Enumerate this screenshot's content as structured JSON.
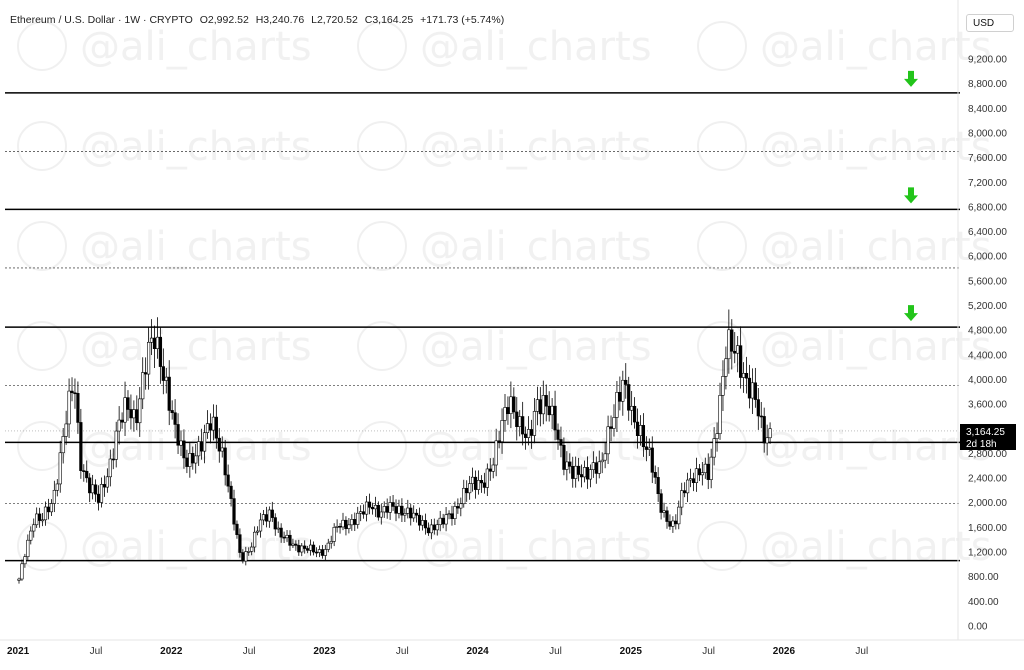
{
  "header": {
    "symbol": "Ethereum / U.S. Dollar · 1W · CRYPTO",
    "open": "O2,992.52",
    "high": "H3,240.76",
    "low": "L2,720.52",
    "close": "C3,164.25",
    "change": "+171.73 (+5.74%)"
  },
  "currency_label": "USD",
  "watermark_text": "@ali_charts",
  "price_box": {
    "price": "3,164.25",
    "countdown": "2d 18h"
  },
  "colors": {
    "bull": "#ffffff",
    "bear": "#000000",
    "arrow": "#22c41a",
    "line": "#000000",
    "dashed": "#555555"
  },
  "chart_data": {
    "type": "candlestick",
    "title": "Ethereum / U.S. Dollar · 1W · CRYPTO",
    "xlabel": "",
    "ylabel": "",
    "ylim": [
      0,
      9400
    ],
    "xlim": [
      2021.0,
      2026.85
    ],
    "y_ticks": [
      0,
      400,
      800,
      1200,
      1600,
      2000,
      2400,
      2800,
      3200,
      3600,
      4000,
      4400,
      4800,
      5200,
      5600,
      6000,
      6400,
      6800,
      7200,
      7600,
      8000,
      8400,
      8800,
      9200
    ],
    "y_tick_labels": [
      "0.00",
      "400.00",
      "800.00",
      "1,200.00",
      "1,600.00",
      "2,000.00",
      "2,400.00",
      "2,800.00",
      "3,200.00",
      "3,600.00",
      "4,000.00",
      "4,400.00",
      "4,800.00",
      "5,200.00",
      "5,600.00",
      "6,000.00",
      "6,400.00",
      "6,800.00",
      "7,200.00",
      "7,600.00",
      "8,000.00",
      "8,400.00",
      "8,800.00",
      "9,200.00"
    ],
    "x_ticks": [
      {
        "label": "2021",
        "t": 2021.0,
        "year": true
      },
      {
        "label": "Jul",
        "t": 2021.5,
        "year": false
      },
      {
        "label": "2022",
        "t": 2022.0,
        "year": true
      },
      {
        "label": "Jul",
        "t": 2022.5,
        "year": false
      },
      {
        "label": "2023",
        "t": 2023.0,
        "year": true
      },
      {
        "label": "Jul",
        "t": 2023.5,
        "year": false
      },
      {
        "label": "2024",
        "t": 2024.0,
        "year": true
      },
      {
        "label": "Jul",
        "t": 2024.5,
        "year": false
      },
      {
        "label": "2025",
        "t": 2025.0,
        "year": true
      },
      {
        "label": "Jul",
        "t": 2025.5,
        "year": false
      },
      {
        "label": "2026",
        "t": 2026.0,
        "year": true
      },
      {
        "label": "Jul",
        "t": 2026.5,
        "year": false
      }
    ],
    "close_path": [
      [
        2021.0,
        740
      ],
      [
        2021.05,
        1300
      ],
      [
        2021.1,
        1800
      ],
      [
        2021.15,
        1700
      ],
      [
        2021.22,
        2000
      ],
      [
        2021.3,
        3300
      ],
      [
        2021.36,
        3900
      ],
      [
        2021.4,
        2700
      ],
      [
        2021.46,
        2300
      ],
      [
        2021.52,
        2000
      ],
      [
        2021.58,
        2500
      ],
      [
        2021.64,
        3200
      ],
      [
        2021.7,
        3500
      ],
      [
        2021.76,
        3400
      ],
      [
        2021.82,
        4200
      ],
      [
        2021.88,
        4600
      ],
      [
        2021.92,
        4400
      ],
      [
        2021.96,
        4000
      ],
      [
        2022.02,
        3100
      ],
      [
        2022.08,
        2700
      ],
      [
        2022.14,
        2800
      ],
      [
        2022.2,
        2900
      ],
      [
        2022.26,
        3400
      ],
      [
        2022.32,
        2900
      ],
      [
        2022.38,
        2000
      ],
      [
        2022.45,
        1100
      ],
      [
        2022.52,
        1300
      ],
      [
        2022.58,
        1700
      ],
      [
        2022.64,
        1900
      ],
      [
        2022.7,
        1450
      ],
      [
        2022.78,
        1350
      ],
      [
        2022.86,
        1250
      ],
      [
        2022.94,
        1200
      ],
      [
        2023.0,
        1250
      ],
      [
        2023.08,
        1600
      ],
      [
        2023.16,
        1700
      ],
      [
        2023.24,
        1800
      ],
      [
        2023.3,
        2000
      ],
      [
        2023.36,
        1850
      ],
      [
        2023.44,
        1900
      ],
      [
        2023.52,
        1900
      ],
      [
        2023.6,
        1700
      ],
      [
        2023.68,
        1600
      ],
      [
        2023.76,
        1650
      ],
      [
        2023.84,
        1900
      ],
      [
        2023.9,
        2100
      ],
      [
        2023.96,
        2300
      ],
      [
        2024.04,
        2400
      ],
      [
        2024.1,
        2600
      ],
      [
        2024.16,
        3400
      ],
      [
        2024.2,
        3800
      ],
      [
        2024.26,
        3200
      ],
      [
        2024.32,
        3000
      ],
      [
        2024.38,
        3700
      ],
      [
        2024.44,
        3500
      ],
      [
        2024.5,
        3300
      ],
      [
        2024.56,
        2700
      ],
      [
        2024.62,
        2400
      ],
      [
        2024.68,
        2500
      ],
      [
        2024.74,
        2600
      ],
      [
        2024.8,
        2500
      ],
      [
        2024.86,
        3300
      ],
      [
        2024.9,
        3700
      ],
      [
        2024.94,
        3900
      ],
      [
        2025.0,
        3400
      ],
      [
        2025.06,
        3200
      ],
      [
        2025.12,
        2700
      ],
      [
        2025.18,
        2000
      ],
      [
        2025.22,
        1800
      ],
      [
        2025.28,
        1600
      ],
      [
        2025.34,
        2200
      ],
      [
        2025.4,
        2500
      ],
      [
        2025.46,
        2500
      ],
      [
        2025.5,
        2400
      ],
      [
        2025.54,
        3000
      ],
      [
        2025.58,
        3800
      ],
      [
        2025.62,
        4600
      ],
      [
        2025.66,
        4400
      ],
      [
        2025.7,
        4300
      ],
      [
        2025.74,
        4100
      ],
      [
        2025.78,
        3900
      ],
      [
        2025.82,
        3500
      ],
      [
        2025.86,
        3000
      ],
      [
        2025.9,
        3164
      ]
    ],
    "horizontal_levels": [
      {
        "price": 1060,
        "style": "solid",
        "label": ""
      },
      {
        "price": 1990,
        "style": "dashed",
        "label": ""
      },
      {
        "price": 2980,
        "style": "solid",
        "label": ""
      },
      {
        "price": 3900,
        "style": "dashed",
        "label": ""
      },
      {
        "price": 4850,
        "style": "solid",
        "label": ""
      },
      {
        "price": 5810,
        "style": "dashed",
        "label": ""
      },
      {
        "price": 6760,
        "style": "solid",
        "label": ""
      },
      {
        "price": 7700,
        "style": "dashed",
        "label": ""
      },
      {
        "price": 8650,
        "style": "solid",
        "label": ""
      }
    ],
    "target_arrows": [
      {
        "price": 4850
      },
      {
        "price": 6760
      },
      {
        "price": 8650
      }
    ],
    "last_price": 3164.25,
    "grid": false,
    "legend": "none"
  }
}
